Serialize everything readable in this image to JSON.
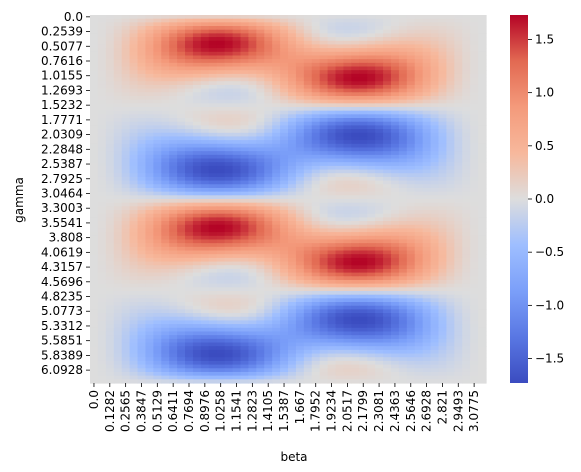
{
  "chart_data": {
    "type": "heatmap",
    "title": "",
    "xlabel": "beta",
    "ylabel": "gamma",
    "colormap": "coolwarm",
    "colormap_stops": [
      [
        0.0,
        "#3b4cc0"
      ],
      [
        0.125,
        "#5977e3"
      ],
      [
        0.25,
        "#7b9ff9"
      ],
      [
        0.375,
        "#9ebeff"
      ],
      [
        0.5,
        "#dddddd"
      ],
      [
        0.625,
        "#f7b89c"
      ],
      [
        0.75,
        "#f49a7b"
      ],
      [
        0.875,
        "#e26952"
      ],
      [
        1.0,
        "#b40426"
      ]
    ],
    "vmin": -1.73,
    "vmax": 1.73,
    "x_tick_labels": [
      "0.0",
      "0.1282",
      "0.2565",
      "0.3847",
      "0.5129",
      "0.6411",
      "0.7694",
      "0.8976",
      "1.0258",
      "1.1541",
      "1.2823",
      "1.4105",
      "1.5387",
      "1.667",
      "1.7952",
      "1.9234",
      "2.0517",
      "2.1799",
      "2.3081",
      "2.4363",
      "2.5646",
      "2.6928",
      "2.821",
      "2.9493",
      "3.0775"
    ],
    "y_tick_labels": [
      "0.0",
      "0.2539",
      "0.5077",
      "0.7616",
      "1.0155",
      "1.2693",
      "1.5232",
      "1.7771",
      "2.0309",
      "2.2848",
      "2.5387",
      "2.7925",
      "3.0464",
      "3.3003",
      "3.5541",
      "3.808",
      "4.0619",
      "4.3157",
      "4.5696",
      "4.8235",
      "5.0773",
      "5.3312",
      "5.5851",
      "5.8389",
      "6.0928"
    ],
    "colorbar": {
      "ticks": [
        1.5,
        1.0,
        0.5,
        0.0,
        -0.5,
        -1.0,
        -1.5
      ],
      "tick_labels": [
        "1.5",
        "1.0",
        "0.5",
        "0.0",
        "−0.5",
        "−1.0",
        "−1.5"
      ]
    },
    "grid": {
      "n_beta": 50,
      "n_gamma": 100,
      "beta_max": 3.1416,
      "gamma_max": 6.2832
    },
    "data_summary": {
      "approx_min": -1.73,
      "approx_max": 1.73,
      "positive_bands_gamma": [
        [
          0.1,
          1.6
        ],
        [
          3.25,
          4.7
        ]
      ],
      "negative_bands_gamma": [
        [
          1.65,
          3.1
        ],
        [
          4.8,
          6.25
        ]
      ],
      "peak_locations": [
        {
          "beta": 1.8,
          "gamma": 0.64,
          "value": 1.73
        },
        {
          "beta": 1.0,
          "gamma": 0.8,
          "value": 1.35
        },
        {
          "beta": 1.15,
          "gamma": 2.45,
          "value": -1.45
        },
        {
          "beta": 1.15,
          "gamma": 3.83,
          "value": 1.55
        },
        {
          "beta": 1.85,
          "gamma": 5.6,
          "value": -1.55
        },
        {
          "beta": 0.8,
          "gamma": 5.5,
          "value": -1.25
        }
      ]
    }
  }
}
